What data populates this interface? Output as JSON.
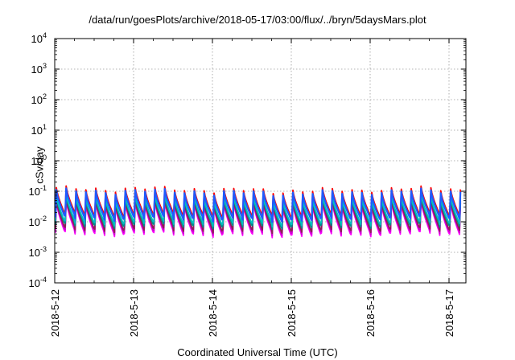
{
  "chart_data": {
    "type": "line",
    "title": "/data/run/goesPlots/archive/2018-05-17/03:00/flux/../bryn/5daysMars.plot",
    "xlabel": "Coordinated Universal Time (UTC)",
    "ylabel": "cSv/day",
    "x_ticks": [
      "2018-5-12",
      "2018-5-13",
      "2018-5-14",
      "2018-5-15",
      "2018-5-16",
      "2018-5-17"
    ],
    "xlim_days": [
      0,
      5.15
    ],
    "y_scale": "log",
    "ylim": [
      0.0001,
      10000
    ],
    "y_ticks": [
      {
        "base": "10",
        "exp": "-4"
      },
      {
        "base": "10",
        "exp": "-3"
      },
      {
        "base": "10",
        "exp": "-2"
      },
      {
        "base": "10",
        "exp": "-1"
      },
      {
        "base": "10",
        "exp": "0"
      },
      {
        "base": "10",
        "exp": "1"
      },
      {
        "base": "10",
        "exp": "2"
      },
      {
        "base": "10",
        "exp": "3"
      },
      {
        "base": "10",
        "exp": "4"
      }
    ],
    "grid": true,
    "legend": "none",
    "pattern": {
      "period_days": 0.125,
      "first_peak_day": 0.02
    },
    "series": [
      {
        "color": "#ff00ff",
        "peak": 0.042,
        "trough": 0.004
      },
      {
        "color": "#d000d0",
        "peak": 0.045,
        "trough": 0.0046
      },
      {
        "color": "#8b2252",
        "peak": 0.05,
        "trough": 0.0055
      },
      {
        "color": "#008b8b",
        "peak": 0.06,
        "trough": 0.0075
      },
      {
        "color": "#00c0c0",
        "peak": 0.066,
        "trough": 0.009
      },
      {
        "color": "#ff0000",
        "peak": 0.12,
        "trough": 0.016
      },
      {
        "color": "#1e5aff",
        "peak": 0.1,
        "trough": 0.013
      }
    ]
  }
}
